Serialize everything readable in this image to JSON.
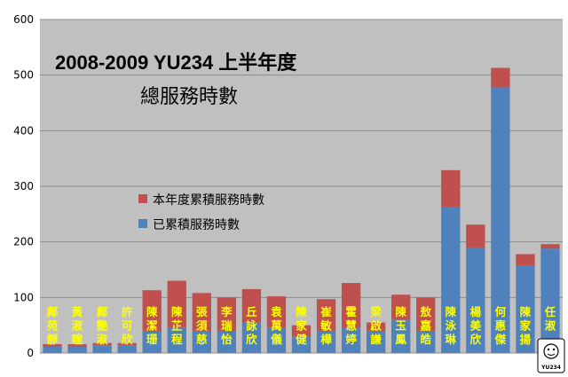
{
  "chart_data": {
    "type": "bar",
    "stacked": true,
    "title": "2008-2009 YU234 上半年度",
    "subtitle": "總服務時數",
    "categories": [
      "鄺苑靜",
      "黃淑瞳",
      "鄺艷淑",
      "許可欣",
      "陳潔珊",
      "陳芷程",
      "張須慈",
      "李瑞怡",
      "丘詠欣",
      "袁萬儀",
      "陳家健",
      "崔敏樺",
      "霍慧婷",
      "梁啟謙",
      "陳玉鳳",
      "敖嘉皓",
      "陳泳琳",
      "楊美欣",
      "何惠傑",
      "陳家揚",
      "任淑"
    ],
    "series": [
      {
        "name": "已累積服務時數",
        "color": "#4f81bd",
        "values": [
          12,
          12,
          14,
          14,
          40,
          45,
          40,
          40,
          55,
          45,
          30,
          40,
          45,
          40,
          60,
          40,
          262,
          190,
          478,
          158,
          188
        ]
      },
      {
        "name": "本年度累積服務時數",
        "color": "#c0504d",
        "values": [
          4,
          4,
          4,
          4,
          73,
          85,
          68,
          60,
          60,
          57,
          20,
          57,
          81,
          15,
          45,
          60,
          67,
          41,
          35,
          20,
          8
        ]
      }
    ],
    "ylim": [
      0,
      600
    ],
    "yticks": [
      0,
      100,
      200,
      300,
      400,
      500,
      600
    ],
    "grid": true,
    "legend": "center-left",
    "plot_background": "#c0c0c0",
    "gridline_color": "#8c8c8c"
  },
  "logo": {
    "text": "YU234"
  }
}
